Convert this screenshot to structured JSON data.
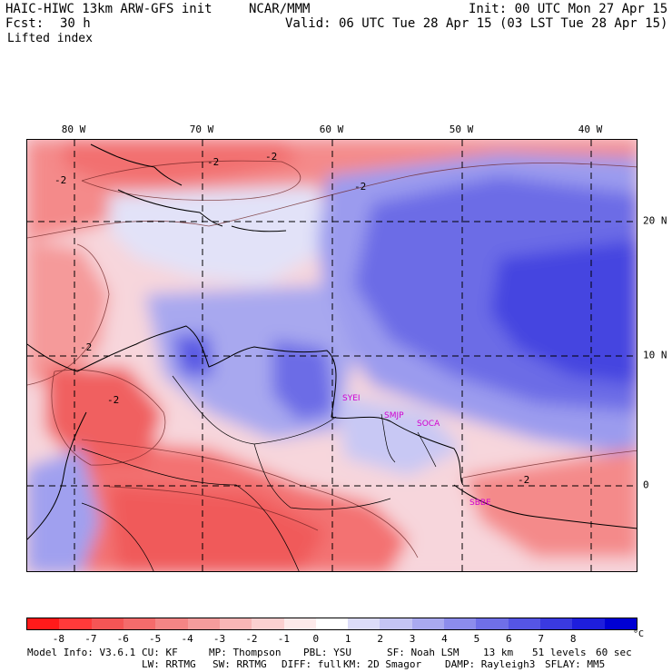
{
  "header": {
    "model_title": "HAIC-HIWC 13km ARW-GFS init",
    "org": "NCAR/MMM",
    "init": "Init: 00 UTC Mon 27 Apr 15",
    "fcst_label": "Fcst:",
    "fcst_value": "30 h",
    "valid": "Valid: 06 UTC Tue 28 Apr 15 (03 LST Tue 28 Apr 15)",
    "field": "Lifted index"
  },
  "map": {
    "lon_labels": [
      "80 W",
      "70 W",
      "60 W",
      "50 W",
      "40 W"
    ],
    "lat_labels": [
      "20 N",
      "10 N",
      "0"
    ],
    "contour_labels": [
      "-2",
      "-2",
      "-2",
      "-2",
      "-2",
      "-2",
      "-2"
    ],
    "stations": [
      "SYEI",
      "SMJP",
      "SOCA",
      "SBBE"
    ]
  },
  "colorbar": {
    "colors": [
      "#ff1a1a",
      "#ff3a3a",
      "#f55555",
      "#f56b6b",
      "#f48585",
      "#f59c9c",
      "#f8b6b6",
      "#fbd0d0",
      "#fdeaea",
      "#ffffff",
      "#dcdcf8",
      "#c4c4f4",
      "#a9a9f0",
      "#8c8cec",
      "#6f6fe8",
      "#5555e4",
      "#3a3ae0",
      "#1e1edc",
      "#0000d4"
    ],
    "ticks": [
      "-8",
      "-7",
      "-6",
      "-5",
      "-4",
      "-3",
      "-2",
      "-1",
      "0",
      "1",
      "2",
      "3",
      "4",
      "5",
      "6",
      "7",
      "8"
    ],
    "unit": "°C"
  },
  "footer": {
    "model_info": "Model Info: V3.6.1",
    "cu": "CU: KF",
    "mp": "MP: Thompson",
    "pbl": "PBL: YSU",
    "sf": "SF: Noah LSM",
    "res": "13 km",
    "levels": "51 levels",
    "dt": "60 sec",
    "lw": "LW: RRTMG",
    "sw": "SW: RRTMG",
    "diff": "DIFF: full",
    "km": "KM: 2D Smagor",
    "damp": "DAMP: Rayleigh3",
    "sflay": "SFLAY: MM5"
  }
}
